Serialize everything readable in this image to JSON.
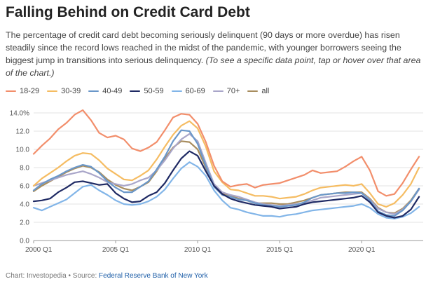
{
  "header": {
    "title": "Falling Behind on Credit Card Debt",
    "description": "The percentage of credit card debt becoming seriously delinquent (90 days or more overdue) has risen steadily since the record lows reached in the midst of the pandemic, with younger borrowers seeing the biggest jump in transitions into serious delinquency.",
    "note": "(To see a specific data point, tap or hover over that area of the chart.)"
  },
  "footer": {
    "prefix": "Chart: Investopedia • Source: ",
    "source_label": "Federal Reserve Bank of New York"
  },
  "chart_data": {
    "type": "line",
    "title": "Falling Behind on Credit Card Debt",
    "xlabel": "",
    "ylabel": "",
    "ylim": [
      0,
      14
    ],
    "xlim": [
      2000.0,
      2023.75
    ],
    "y_ticks": [
      0,
      2,
      4,
      6,
      8,
      10,
      12,
      14
    ],
    "y_tick_labels": [
      "0.0",
      "2.0",
      "4.0",
      "6.0",
      "8.0",
      "10.0",
      "12.0",
      "14.0%"
    ],
    "x_ticks": [
      2000,
      2005,
      2010,
      2015,
      2020
    ],
    "x_tick_labels": [
      "2000 Q1",
      "2005 Q1",
      "2010 Q1",
      "2015 Q1",
      "2020 Q1"
    ],
    "grid": "horizontal",
    "legend_position": "top-left",
    "x": [
      2000.0,
      2000.5,
      2001.0,
      2001.5,
      2002.0,
      2002.5,
      2003.0,
      2003.5,
      2004.0,
      2004.5,
      2005.0,
      2005.5,
      2006.0,
      2006.5,
      2007.0,
      2007.5,
      2008.0,
      2008.5,
      2009.0,
      2009.5,
      2010.0,
      2010.5,
      2011.0,
      2011.5,
      2012.0,
      2012.5,
      2013.0,
      2013.5,
      2014.0,
      2014.5,
      2015.0,
      2015.5,
      2016.0,
      2016.5,
      2017.0,
      2017.5,
      2018.0,
      2018.5,
      2019.0,
      2019.5,
      2020.0,
      2020.5,
      2021.0,
      2021.5,
      2022.0,
      2022.5,
      2023.0,
      2023.5
    ],
    "series": [
      {
        "name": "18-29",
        "color": "#f28e6b",
        "values": [
          9.5,
          10.4,
          11.2,
          12.2,
          12.9,
          13.8,
          14.3,
          13.2,
          11.8,
          11.3,
          11.5,
          11.1,
          10.1,
          9.8,
          10.2,
          10.8,
          12.1,
          13.5,
          13.9,
          13.8,
          12.8,
          10.8,
          8.2,
          6.5,
          5.9,
          6.1,
          6.2,
          5.8,
          6.1,
          6.2,
          6.3,
          6.6,
          6.9,
          7.2,
          7.7,
          7.4,
          7.5,
          7.6,
          8.1,
          8.7,
          9.2,
          7.7,
          5.4,
          4.9,
          5.1,
          6.3,
          7.8,
          9.2
        ]
      },
      {
        "name": "30-39",
        "color": "#f5bc62",
        "values": [
          6.0,
          6.8,
          7.4,
          8.0,
          8.7,
          9.3,
          9.6,
          9.5,
          8.8,
          7.9,
          7.3,
          6.7,
          6.6,
          7.1,
          7.7,
          8.9,
          10.3,
          11.6,
          12.6,
          13.1,
          12.3,
          10.3,
          7.6,
          6.4,
          5.6,
          5.5,
          5.2,
          4.9,
          4.9,
          4.8,
          4.6,
          4.7,
          4.8,
          5.1,
          5.5,
          5.8,
          5.9,
          6.0,
          6.1,
          6.0,
          6.2,
          5.2,
          4.0,
          3.7,
          4.1,
          5.0,
          6.2,
          8.0
        ]
      },
      {
        "name": "40-49",
        "color": "#6a97c9",
        "values": [
          5.5,
          6.2,
          6.7,
          7.1,
          7.6,
          8.0,
          8.3,
          8.1,
          7.4,
          6.5,
          5.8,
          5.3,
          5.3,
          5.9,
          6.5,
          7.8,
          9.2,
          10.9,
          12.1,
          12.0,
          10.6,
          8.2,
          5.9,
          5.0,
          4.8,
          4.5,
          4.4,
          4.1,
          3.9,
          3.8,
          3.7,
          3.8,
          3.9,
          4.2,
          4.7,
          5.0,
          5.1,
          5.2,
          5.2,
          5.3,
          5.2,
          4.4,
          3.2,
          2.8,
          2.7,
          3.3,
          4.3,
          5.7
        ]
      },
      {
        "name": "50-59",
        "color": "#1f2a64",
        "values": [
          4.3,
          4.4,
          4.6,
          5.3,
          5.8,
          6.4,
          6.5,
          6.3,
          6.1,
          6.2,
          5.2,
          4.6,
          4.2,
          4.3,
          4.9,
          5.3,
          6.3,
          7.7,
          9.0,
          9.8,
          9.3,
          7.6,
          6.0,
          5.1,
          4.6,
          4.3,
          4.1,
          3.9,
          3.8,
          3.7,
          3.5,
          3.6,
          3.7,
          4.0,
          4.2,
          4.3,
          4.4,
          4.5,
          4.6,
          4.7,
          4.9,
          4.2,
          3.1,
          2.7,
          2.5,
          2.7,
          3.4,
          4.8
        ]
      },
      {
        "name": "60-69",
        "color": "#82b5e8",
        "values": [
          3.6,
          3.3,
          3.7,
          4.1,
          4.5,
          5.2,
          5.9,
          6.1,
          5.5,
          5.0,
          4.4,
          4.0,
          3.9,
          4.0,
          4.3,
          4.8,
          5.6,
          6.8,
          7.9,
          8.6,
          8.1,
          7.1,
          5.5,
          4.4,
          3.6,
          3.4,
          3.1,
          2.9,
          2.7,
          2.7,
          2.6,
          2.8,
          2.9,
          3.1,
          3.3,
          3.4,
          3.5,
          3.6,
          3.7,
          3.8,
          4.0,
          3.6,
          2.9,
          2.5,
          2.4,
          2.6,
          3.0,
          3.7
        ]
      },
      {
        "name": "70+",
        "color": "#a9a6c9",
        "values": [
          6.0,
          6.3,
          6.6,
          6.9,
          7.2,
          7.4,
          7.6,
          7.3,
          6.9,
          6.4,
          6.2,
          6.0,
          6.2,
          6.6,
          6.9,
          7.7,
          8.8,
          10.1,
          11.1,
          11.7,
          10.9,
          8.5,
          6.2,
          5.3,
          5.0,
          4.8,
          4.5,
          4.2,
          4.0,
          3.9,
          3.8,
          3.9,
          4.0,
          4.1,
          4.4,
          4.7,
          4.8,
          4.9,
          5.0,
          5.1,
          5.2,
          4.5,
          3.5,
          3.1,
          2.9,
          3.4,
          4.3,
          5.6
        ]
      },
      {
        "name": "all",
        "color": "#a88d5e",
        "values": [
          5.4,
          6.0,
          6.5,
          7.0,
          7.5,
          7.9,
          8.2,
          8.0,
          7.5,
          6.7,
          6.1,
          5.7,
          5.5,
          5.9,
          6.4,
          7.6,
          9.0,
          10.2,
          10.9,
          10.8,
          10.0,
          8.0,
          6.1,
          5.2,
          4.9,
          4.6,
          4.4,
          4.1,
          4.1,
          4.1,
          4.0,
          4.0,
          4.2,
          4.4,
          4.7,
          5.0,
          5.1,
          5.2,
          5.3,
          5.3,
          5.3,
          4.6,
          3.6,
          3.1,
          3.0,
          3.5,
          4.4,
          5.7
        ]
      }
    ]
  }
}
